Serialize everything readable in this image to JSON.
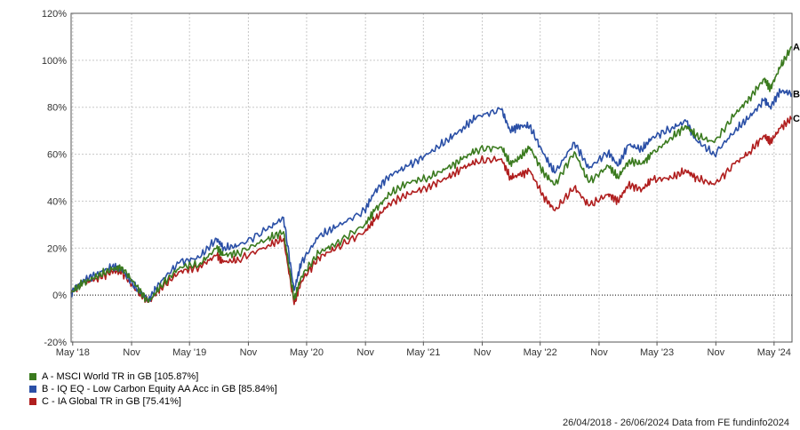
{
  "chart_data": {
    "type": "line",
    "x_ticks": [
      "May '18",
      "Nov",
      "May '19",
      "Nov",
      "May '20",
      "Nov",
      "May '21",
      "Nov",
      "May '22",
      "Nov",
      "May '23",
      "Nov",
      "May '24"
    ],
    "x_tick_dates": [
      "2018-05-01",
      "2018-11-01",
      "2019-05-01",
      "2019-11-01",
      "2020-05-01",
      "2020-11-01",
      "2021-05-01",
      "2021-11-01",
      "2022-05-01",
      "2022-11-01",
      "2023-05-01",
      "2023-11-01",
      "2024-05-01"
    ],
    "xlim": [
      "2018-04-26",
      "2024-06-26"
    ],
    "y_ticks": [
      "120%",
      "100%",
      "80%",
      "60%",
      "40%",
      "20%",
      "0%",
      "-20%"
    ],
    "y_tick_values": [
      120,
      100,
      80,
      60,
      40,
      20,
      0,
      -20
    ],
    "ylim": [
      -20,
      120
    ],
    "grid": true,
    "zero_line": true,
    "series": [
      {
        "name": "A - MSCI World TR in GB [105.87%]",
        "end_label": "A",
        "color": "#3a7a1e",
        "x": [
          "2018-04-26",
          "2018-06-01",
          "2018-07-15",
          "2018-09-01",
          "2018-10-01",
          "2018-11-15",
          "2018-12-24",
          "2019-02-01",
          "2019-04-01",
          "2019-05-31",
          "2019-07-25",
          "2019-08-15",
          "2019-10-01",
          "2019-12-31",
          "2020-02-19",
          "2020-03-23",
          "2020-04-15",
          "2020-06-08",
          "2020-08-01",
          "2020-10-30",
          "2020-11-30",
          "2021-01-15",
          "2021-03-15",
          "2021-05-15",
          "2021-07-15",
          "2021-09-01",
          "2021-10-15",
          "2021-12-31",
          "2022-01-27",
          "2022-02-24",
          "2022-03-29",
          "2022-05-12",
          "2022-06-16",
          "2022-08-16",
          "2022-09-30",
          "2022-11-30",
          "2022-12-30",
          "2023-02-01",
          "2023-03-15",
          "2023-04-15",
          "2023-06-15",
          "2023-07-31",
          "2023-08-31",
          "2023-10-27",
          "2023-12-31",
          "2024-02-15",
          "2024-03-31",
          "2024-04-19",
          "2024-05-20",
          "2024-06-26"
        ],
        "y": [
          1,
          5,
          8,
          11,
          12,
          4,
          -3,
          4,
          12,
          13,
          20,
          17,
          18,
          24,
          27,
          -2,
          8,
          18,
          22,
          30,
          36,
          43,
          48,
          50,
          54,
          58,
          62,
          63,
          56,
          58,
          63,
          52,
          47,
          61,
          48,
          55,
          50,
          57,
          56,
          60,
          67,
          72,
          68,
          65,
          77,
          84,
          92,
          88,
          97,
          105.87
        ]
      },
      {
        "name": "B - IQ EQ - Low Carbon Equity AA Acc in GB [85.84%]",
        "end_label": "B",
        "color": "#2a4fa6",
        "x": [
          "2018-04-26",
          "2018-06-01",
          "2018-07-15",
          "2018-09-01",
          "2018-10-01",
          "2018-11-15",
          "2018-12-24",
          "2019-02-01",
          "2019-04-01",
          "2019-05-31",
          "2019-07-25",
          "2019-08-15",
          "2019-10-01",
          "2019-12-31",
          "2020-02-19",
          "2020-03-23",
          "2020-04-15",
          "2020-06-08",
          "2020-08-01",
          "2020-10-30",
          "2020-11-30",
          "2021-01-15",
          "2021-03-15",
          "2021-05-15",
          "2021-07-15",
          "2021-09-01",
          "2021-10-15",
          "2021-12-31",
          "2022-01-27",
          "2022-02-24",
          "2022-03-29",
          "2022-05-12",
          "2022-06-16",
          "2022-08-16",
          "2022-09-30",
          "2022-11-30",
          "2022-12-30",
          "2023-02-01",
          "2023-03-15",
          "2023-04-15",
          "2023-06-15",
          "2023-07-31",
          "2023-08-31",
          "2023-10-27",
          "2023-12-31",
          "2024-02-15",
          "2024-03-31",
          "2024-04-19",
          "2024-05-20",
          "2024-06-26"
        ],
        "y": [
          1,
          6,
          9,
          12,
          11,
          3,
          -2,
          6,
          14,
          16,
          24,
          20,
          21,
          28,
          33,
          2,
          14,
          25,
          29,
          36,
          44,
          51,
          55,
          60,
          66,
          71,
          76,
          79,
          70,
          72,
          72,
          60,
          52,
          65,
          54,
          61,
          55,
          64,
          62,
          67,
          71,
          74,
          66,
          60,
          70,
          76,
          83,
          80,
          87,
          85.84
        ]
      },
      {
        "name": "C - IA Global TR in GB [75.41%]",
        "end_label": "C",
        "color": "#b01e1e",
        "x": [
          "2018-04-26",
          "2018-06-01",
          "2018-07-15",
          "2018-09-01",
          "2018-10-01",
          "2018-11-15",
          "2018-12-24",
          "2019-02-01",
          "2019-04-01",
          "2019-05-31",
          "2019-07-25",
          "2019-08-15",
          "2019-10-01",
          "2019-12-31",
          "2020-02-19",
          "2020-03-23",
          "2020-04-15",
          "2020-06-08",
          "2020-08-01",
          "2020-10-30",
          "2020-11-30",
          "2021-01-15",
          "2021-03-15",
          "2021-05-15",
          "2021-07-15",
          "2021-09-01",
          "2021-10-15",
          "2021-12-31",
          "2022-01-27",
          "2022-02-24",
          "2022-03-29",
          "2022-05-12",
          "2022-06-16",
          "2022-08-16",
          "2022-09-30",
          "2022-11-30",
          "2022-12-30",
          "2023-02-01",
          "2023-03-15",
          "2023-04-15",
          "2023-06-15",
          "2023-07-31",
          "2023-08-31",
          "2023-10-27",
          "2023-12-31",
          "2024-02-15",
          "2024-03-31",
          "2024-04-19",
          "2024-05-20",
          "2024-06-26"
        ],
        "y": [
          1,
          5,
          7,
          10,
          10,
          2,
          -3,
          3,
          10,
          12,
          17,
          14,
          15,
          21,
          24,
          -4,
          6,
          16,
          20,
          27,
          32,
          39,
          43,
          46,
          50,
          54,
          57,
          58,
          50,
          51,
          53,
          42,
          36,
          46,
          38,
          43,
          40,
          47,
          45,
          49,
          50,
          53,
          50,
          47,
          56,
          61,
          68,
          65,
          71,
          75.41
        ]
      }
    ]
  },
  "legend": {
    "items": [
      {
        "label": "A - MSCI World TR in GB [105.87%]",
        "color": "#3a7a1e"
      },
      {
        "label": "B - IQ EQ - Low Carbon Equity AA Acc in GB [85.84%]",
        "color": "#2a4fa6"
      },
      {
        "label": "C - IA Global TR in GB [75.41%]",
        "color": "#b01e1e"
      }
    ]
  },
  "footer": {
    "text": "26/04/2018 - 26/06/2024 Data from FE fundinfo2024"
  }
}
